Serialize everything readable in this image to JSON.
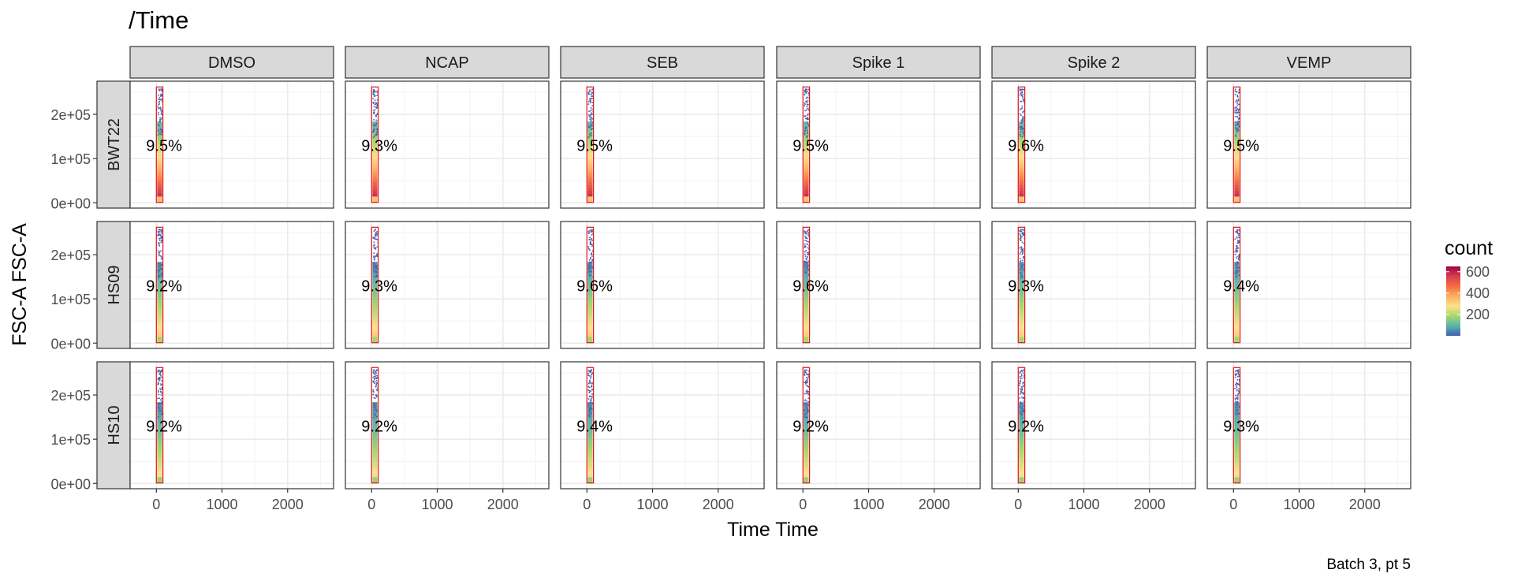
{
  "chart_data": {
    "type": "scatter",
    "title": "/Time",
    "xlabel": "Time Time",
    "ylabel": "FSC-A FSC-A",
    "caption": "Batch 3, pt 5",
    "columns": [
      "DMSO",
      "NCAP",
      "SEB",
      "Spike 1",
      "Spike 2",
      "VEMP"
    ],
    "rows": [
      "BWT22",
      "HS09",
      "HS10"
    ],
    "x_ticks": [
      0,
      1000,
      2000
    ],
    "x_tick_labels": [
      "0",
      "1000",
      "2000"
    ],
    "xlim": [
      -400,
      2700
    ],
    "y_ticks": [
      0,
      100000,
      200000
    ],
    "y_tick_labels": [
      "0e+00",
      "1e+05",
      "2e+05"
    ],
    "ylim": [
      -12000,
      275000
    ],
    "gate": {
      "x_range": [
        0,
        100
      ],
      "y_range": [
        1000,
        262000
      ]
    },
    "gate_labels": [
      [
        "9.5%",
        "9.3%",
        "9.5%",
        "9.5%",
        "9.6%",
        "9.5%"
      ],
      [
        "9.2%",
        "9.3%",
        "9.6%",
        "9.6%",
        "9.3%",
        "9.4%"
      ],
      [
        "9.2%",
        "9.2%",
        "9.4%",
        "9.2%",
        "9.2%",
        "9.3%"
      ]
    ],
    "gate_label_y": 130000,
    "legend": {
      "title": "count",
      "ticks": [
        200,
        400,
        600
      ],
      "tick_labels": [
        "200",
        "400",
        "600"
      ],
      "range": [
        1,
        650
      ],
      "colors": [
        "#3F60AE",
        "#5AB4AC",
        "#A6D96A",
        "#FEE08B",
        "#FDAE61",
        "#F46D43",
        "#D53E4F",
        "#9E0142"
      ]
    },
    "grid": true,
    "legend_position": "right"
  }
}
